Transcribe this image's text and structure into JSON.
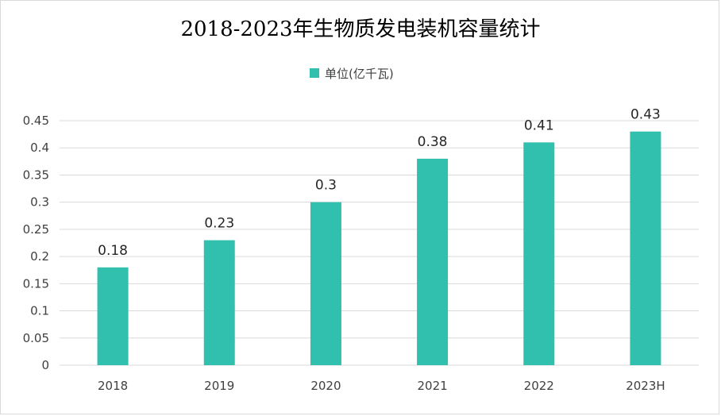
{
  "chart_data": {
    "type": "bar",
    "title": "2018-2023年生物质发电装机容量统计",
    "categories": [
      "2018",
      "2019",
      "2020",
      "2021",
      "2022",
      "2023H"
    ],
    "series": [
      {
        "name": "单位(亿千瓦)",
        "values": [
          0.18,
          0.23,
          0.3,
          0.38,
          0.41,
          0.43
        ],
        "labels": [
          "0.18",
          "0.23",
          "0.3",
          "0.38",
          "0.41",
          "0.43"
        ],
        "color": "#31bfae"
      }
    ],
    "y_ticks": [
      "0",
      "0.05",
      "0.1",
      "0.15",
      "0.2",
      "0.25",
      "0.3",
      "0.35",
      "0.4",
      "0.45"
    ],
    "ylim": [
      0,
      0.45
    ],
    "grid": true,
    "legend_position": "top-center",
    "gridline_color": "#d9d9d9",
    "text_color": "#404040"
  }
}
